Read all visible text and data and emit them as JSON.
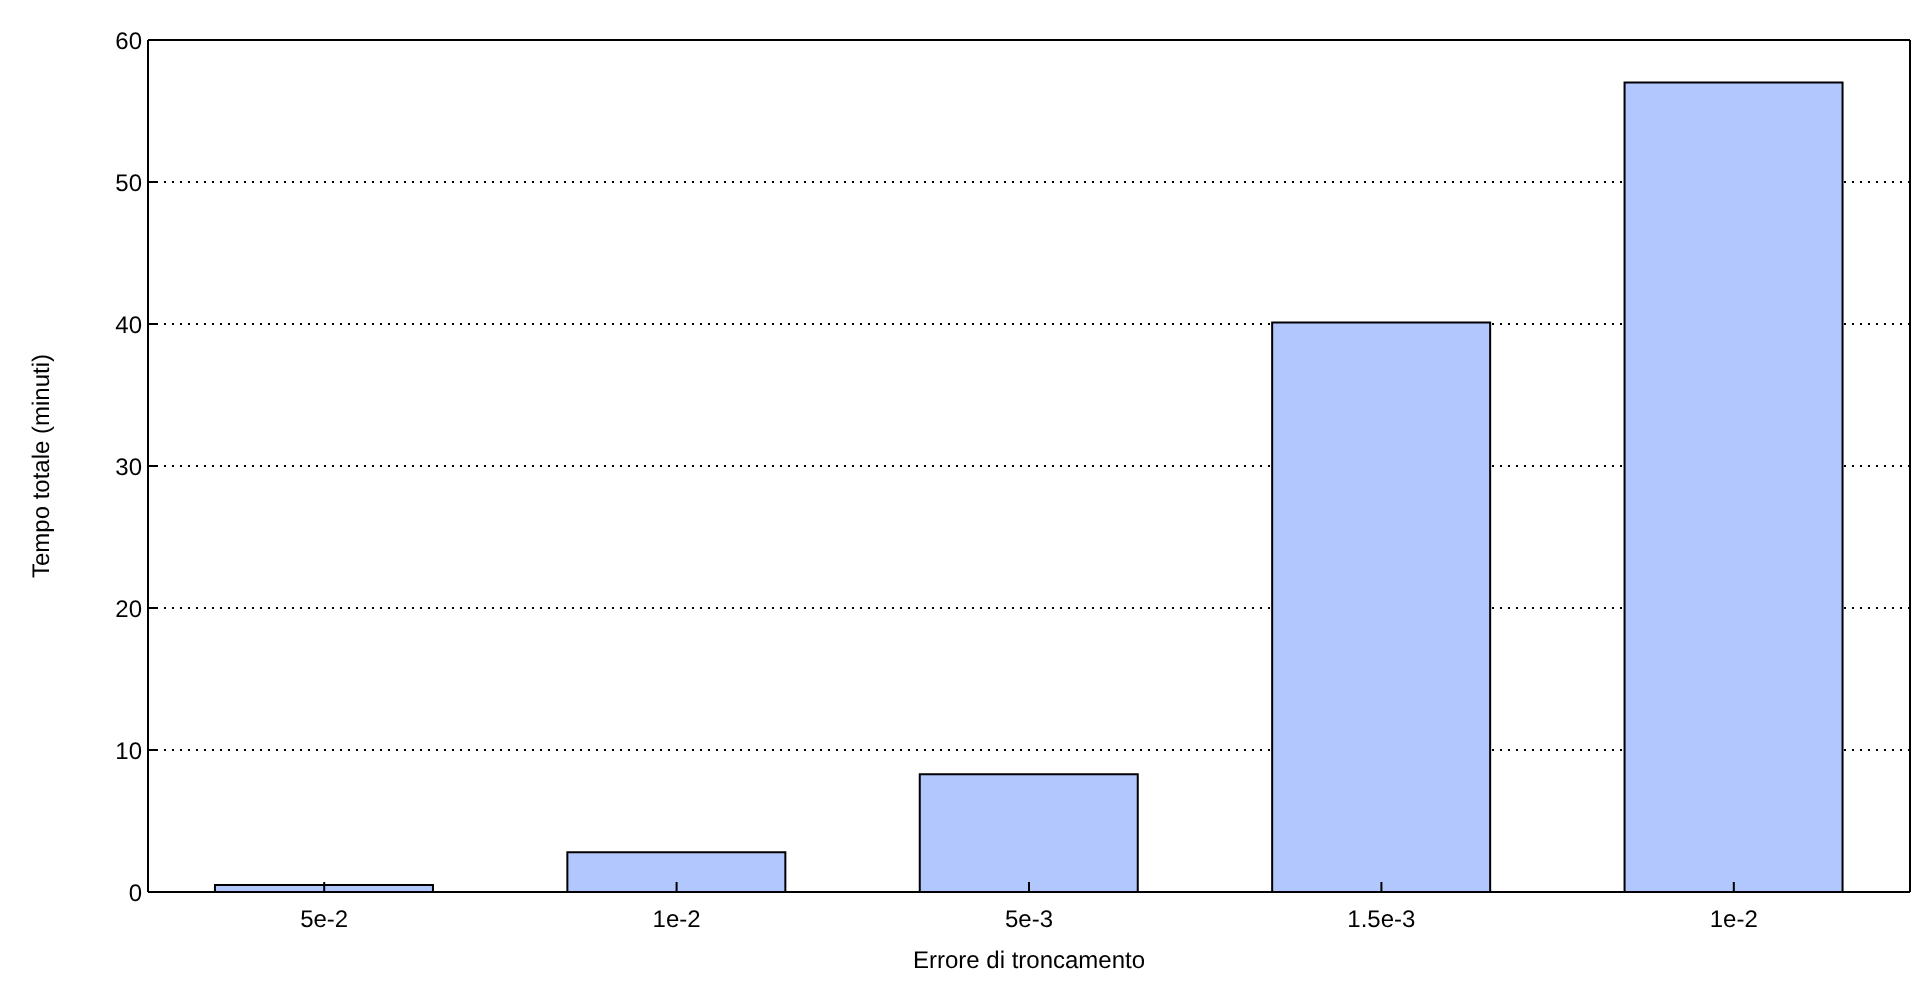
{
  "chart_data": {
    "type": "bar",
    "xlabel": "Errore di troncamento",
    "ylabel": "Tempo totale (minuti)",
    "categories": [
      "5e-2",
      "1e-2",
      "5e-3",
      "1.5e-3",
      "1e-2"
    ],
    "values": [
      0.5,
      2.8,
      8.3,
      40.1,
      57.0
    ],
    "color": "#b3c7ff",
    "ylim": [
      0,
      60
    ],
    "yticks": [
      0,
      10,
      20,
      30,
      40,
      50,
      60
    ],
    "grid": "y"
  }
}
